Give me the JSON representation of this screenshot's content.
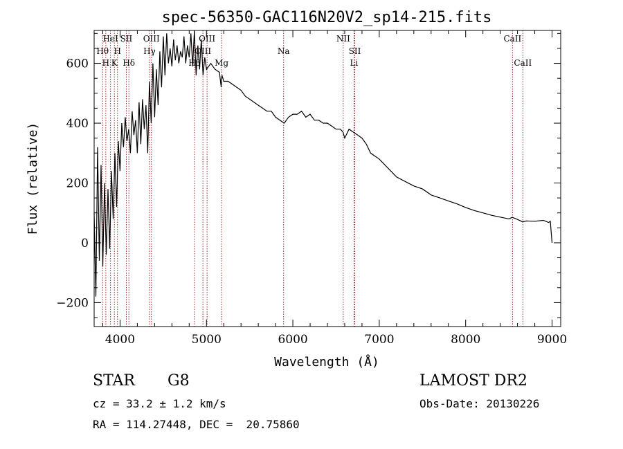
{
  "chart_data": {
    "type": "line",
    "title": "spec-56350-GAC116N20V2_sp14-215.fits",
    "xlabel": "Wavelength (Å)",
    "ylabel": "Flux (relative)",
    "xlim": [
      3700,
      9100
    ],
    "ylim": [
      -280,
      710
    ],
    "xticks": [
      4000,
      5000,
      6000,
      7000,
      8000,
      9000
    ],
    "yticks": [
      -200,
      0,
      200,
      400,
      600
    ],
    "grid": false,
    "line_color": "#000000",
    "marker_color": "#a0282b",
    "spectral_lines": [
      {
        "label": "Hθ",
        "wavelength": 3798,
        "row": 2
      },
      {
        "label": "H",
        "wavelength": 3835,
        "row": 3
      },
      {
        "label": "HeI",
        "wavelength": 3889,
        "row": 1
      },
      {
        "label": "K",
        "wavelength": 3934,
        "row": 3
      },
      {
        "label": "H",
        "wavelength": 3970,
        "row": 2
      },
      {
        "label": "SII",
        "wavelength": 4072,
        "row": 1
      },
      {
        "label": "Hδ",
        "wavelength": 4102,
        "row": 3
      },
      {
        "label": "OIII",
        "wavelength": 4363,
        "row": 1
      },
      {
        "label": "Hγ",
        "wavelength": 4341,
        "row": 2
      },
      {
        "label": "Hβ",
        "wavelength": 4861,
        "row": 3
      },
      {
        "label": "OIII",
        "wavelength": 4959,
        "row": 2
      },
      {
        "label": "OIII",
        "wavelength": 5007,
        "row": 1
      },
      {
        "label": "Mg",
        "wavelength": 5175,
        "row": 3
      },
      {
        "label": "Na",
        "wavelength": 5893,
        "row": 2
      },
      {
        "label": "NII",
        "wavelength": 6583,
        "row": 1
      },
      {
        "label": "Li",
        "wavelength": 6708,
        "row": 3
      },
      {
        "label": "SII",
        "wavelength": 6717,
        "row": 2
      },
      {
        "label": "CaII",
        "wavelength": 8542,
        "row": 1
      },
      {
        "label": "CaII",
        "wavelength": 8662,
        "row": 3
      }
    ],
    "spectrum": {
      "x": [
        3700,
        3720,
        3740,
        3760,
        3780,
        3800,
        3820,
        3840,
        3860,
        3880,
        3900,
        3920,
        3940,
        3960,
        3980,
        4000,
        4020,
        4040,
        4060,
        4080,
        4100,
        4120,
        4140,
        4160,
        4180,
        4200,
        4220,
        4240,
        4260,
        4280,
        4300,
        4320,
        4340,
        4360,
        4380,
        4400,
        4420,
        4440,
        4460,
        4480,
        4500,
        4520,
        4540,
        4560,
        4580,
        4600,
        4620,
        4640,
        4660,
        4680,
        4700,
        4720,
        4740,
        4760,
        4780,
        4800,
        4820,
        4840,
        4860,
        4880,
        4900,
        4920,
        4940,
        4960,
        4980,
        5000,
        5050,
        5100,
        5150,
        5170,
        5180,
        5200,
        5250,
        5300,
        5350,
        5400,
        5450,
        5500,
        5550,
        5600,
        5650,
        5700,
        5750,
        5800,
        5850,
        5900,
        5950,
        6000,
        6050,
        6100,
        6150,
        6200,
        6250,
        6300,
        6350,
        6400,
        6450,
        6500,
        6550,
        6580,
        6600,
        6650,
        6700,
        6750,
        6800,
        6850,
        6900,
        6950,
        7000,
        7100,
        7200,
        7300,
        7400,
        7500,
        7600,
        7700,
        7800,
        7900,
        8000,
        8100,
        8200,
        8300,
        8400,
        8500,
        8540,
        8600,
        8660,
        8700,
        8800,
        8900,
        8960,
        8980,
        9000
      ],
      "y": [
        100,
        -180,
        320,
        -60,
        260,
        -80,
        200,
        -40,
        180,
        -20,
        240,
        80,
        300,
        120,
        340,
        240,
        400,
        320,
        420,
        340,
        380,
        300,
        440,
        360,
        410,
        300,
        470,
        330,
        480,
        380,
        460,
        300,
        540,
        400,
        600,
        420,
        580,
        460,
        640,
        520,
        690,
        560,
        700,
        600,
        650,
        590,
        680,
        610,
        660,
        600,
        640,
        620,
        690,
        600,
        660,
        620,
        700,
        590,
        720,
        560,
        660,
        580,
        680,
        560,
        620,
        580,
        600,
        580,
        570,
        520,
        560,
        540,
        540,
        530,
        520,
        510,
        490,
        480,
        470,
        460,
        450,
        440,
        440,
        420,
        410,
        400,
        420,
        430,
        430,
        440,
        420,
        430,
        410,
        410,
        400,
        400,
        390,
        380,
        380,
        370,
        350,
        380,
        370,
        360,
        350,
        330,
        300,
        290,
        280,
        250,
        220,
        205,
        190,
        180,
        160,
        150,
        140,
        130,
        118,
        108,
        100,
        92,
        86,
        80,
        85,
        78,
        70,
        73,
        72,
        75,
        68,
        72,
        0
      ]
    }
  },
  "info": {
    "object_class": "STAR",
    "subclass": "G8",
    "survey": "LAMOST DR2",
    "redshift": "cz = 33.2 ± 1.2 km/s",
    "obs_date": "Obs-Date: 20130226",
    "coords": "RA = 114.27448, DEC =  20.75860"
  }
}
